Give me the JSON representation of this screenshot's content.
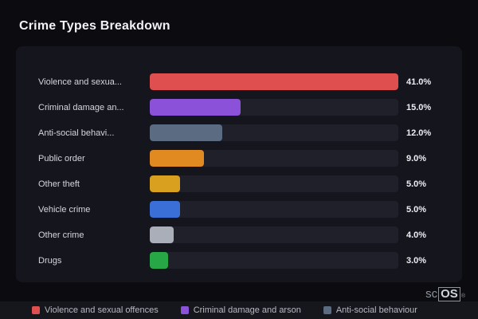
{
  "page": {
    "title": "Crime Types Breakdown",
    "watermark": {
      "prefix": "sc",
      "suffix": "OS",
      "reg": "®"
    }
  },
  "chart_data": {
    "type": "bar",
    "orientation": "horizontal",
    "title": "Crime Types Breakdown",
    "categories": [
      "Violence and sexual offences",
      "Criminal damage and arson",
      "Anti-social behaviour",
      "Public order",
      "Other theft",
      "Vehicle crime",
      "Other crime",
      "Drugs"
    ],
    "category_labels_display": [
      "Violence and sexua...",
      "Criminal damage an...",
      "Anti-social behavi...",
      "Public order",
      "Other theft",
      "Vehicle crime",
      "Other crime",
      "Drugs"
    ],
    "values": [
      41.0,
      15.0,
      12.0,
      9.0,
      5.0,
      5.0,
      4.0,
      3.0
    ],
    "value_labels": [
      "41.0%",
      "15.0%",
      "12.0%",
      "9.0%",
      "5.0%",
      "5.0%",
      "4.0%",
      "3.0%"
    ],
    "colors": [
      "#e04f4f",
      "#8b52d9",
      "#5b6b82",
      "#e08a21",
      "#d9a01f",
      "#3a6fd8",
      "#a9aeb8",
      "#27a746"
    ],
    "xlim": [
      0,
      41
    ],
    "track_color": "#20202b",
    "grid": false,
    "legend_position": "bottom"
  },
  "legend": {
    "items": [
      {
        "label": "Violence and sexual offences",
        "color": "#e04f4f"
      },
      {
        "label": "Criminal damage and arson",
        "color": "#8b52d9"
      },
      {
        "label": "Anti-social behaviour",
        "color": "#5b6b82"
      }
    ]
  }
}
